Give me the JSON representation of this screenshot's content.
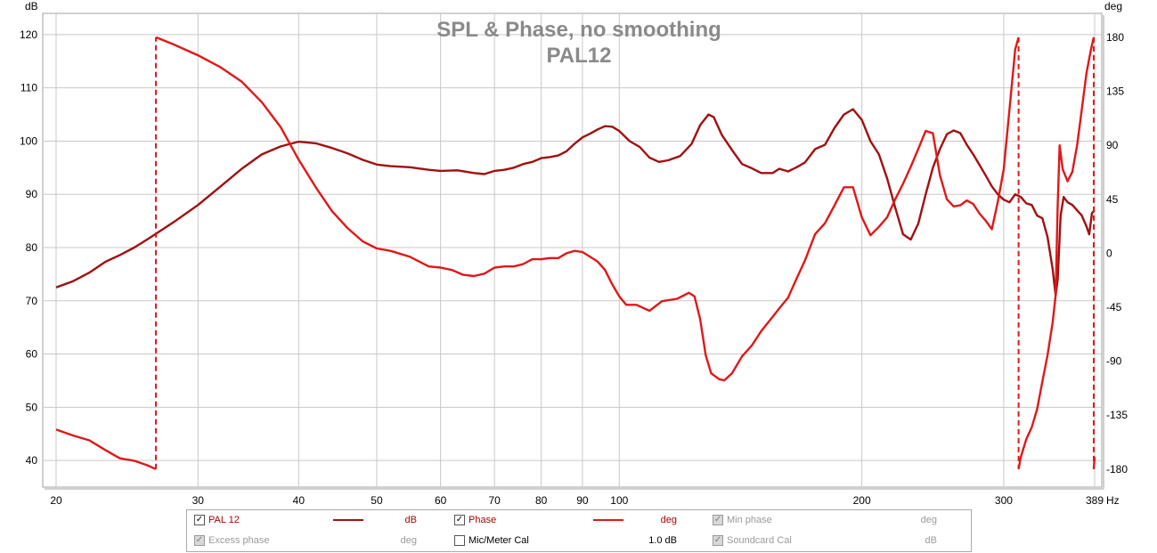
{
  "chart_data": {
    "type": "line",
    "title": "SPL & Phase, no smoothing",
    "subtitle": "PAL12",
    "x_scale": "log",
    "xlim": [
      20,
      389
    ],
    "x_ticks": [
      20,
      30,
      40,
      50,
      60,
      70,
      80,
      90,
      100,
      200,
      300,
      389
    ],
    "x_tick_labels": [
      "20",
      "30",
      "40",
      "50",
      "60",
      "70",
      "80",
      "90",
      "100",
      "200",
      "300",
      "389"
    ],
    "x_unit": "Hz",
    "ylabel_left": "dB",
    "ylabel_right": "deg",
    "ylim_left": [
      35,
      124
    ],
    "ylim_right": [
      -195,
      200
    ],
    "y_ticks_left": [
      40,
      50,
      60,
      70,
      80,
      90,
      100,
      110,
      120
    ],
    "y_ticks_right": [
      -180,
      -135,
      -90,
      -45,
      0,
      45,
      90,
      135,
      180
    ],
    "grid": true,
    "series": [
      {
        "name": "PAL 12",
        "axis": "left",
        "unit": "dB",
        "color": "#a01010",
        "points": [
          [
            20,
            72.5
          ],
          [
            21,
            73.7
          ],
          [
            22,
            75.3
          ],
          [
            23,
            77.3
          ],
          [
            24,
            78.6
          ],
          [
            25,
            80.0
          ],
          [
            26,
            81.6
          ],
          [
            28,
            84.8
          ],
          [
            30,
            88.0
          ],
          [
            32,
            91.5
          ],
          [
            34,
            94.8
          ],
          [
            36,
            97.5
          ],
          [
            38,
            99.0
          ],
          [
            40,
            99.9
          ],
          [
            42,
            99.6
          ],
          [
            44,
            98.7
          ],
          [
            46,
            97.7
          ],
          [
            48,
            96.5
          ],
          [
            50,
            95.6
          ],
          [
            52,
            95.3
          ],
          [
            55,
            95.1
          ],
          [
            58,
            94.6
          ],
          [
            60,
            94.4
          ],
          [
            63,
            94.5
          ],
          [
            66,
            94.0
          ],
          [
            68,
            93.8
          ],
          [
            70,
            94.4
          ],
          [
            72,
            94.6
          ],
          [
            74,
            95.0
          ],
          [
            76,
            95.7
          ],
          [
            78,
            96.1
          ],
          [
            80,
            96.8
          ],
          [
            82,
            97.0
          ],
          [
            84,
            97.3
          ],
          [
            86,
            98.1
          ],
          [
            88,
            99.5
          ],
          [
            90,
            100.7
          ],
          [
            92,
            101.4
          ],
          [
            94,
            102.2
          ],
          [
            96,
            102.8
          ],
          [
            98,
            102.7
          ],
          [
            100,
            101.9
          ],
          [
            103,
            100.0
          ],
          [
            106,
            98.9
          ],
          [
            109,
            96.9
          ],
          [
            112,
            96.1
          ],
          [
            115,
            96.4
          ],
          [
            119,
            97.2
          ],
          [
            123,
            99.5
          ],
          [
            126,
            103.0
          ],
          [
            129,
            105.0
          ],
          [
            131,
            104.5
          ],
          [
            134,
            101.2
          ],
          [
            138,
            98.3
          ],
          [
            142,
            95.7
          ],
          [
            146,
            94.9
          ],
          [
            150,
            94.0
          ],
          [
            155,
            94.0
          ],
          [
            158,
            94.8
          ],
          [
            162,
            94.3
          ],
          [
            166,
            95.1
          ],
          [
            170,
            96.0
          ],
          [
            175,
            98.5
          ],
          [
            180,
            99.3
          ],
          [
            185,
            102.5
          ],
          [
            190,
            105.0
          ],
          [
            195,
            106.0
          ],
          [
            200,
            104.0
          ],
          [
            205,
            100.0
          ],
          [
            210,
            97.5
          ],
          [
            215,
            93.0
          ],
          [
            220,
            87.5
          ],
          [
            225,
            82.5
          ],
          [
            230,
            81.5
          ],
          [
            235,
            84.5
          ],
          [
            240,
            90.0
          ],
          [
            245,
            95.0
          ],
          [
            250,
            98.5
          ],
          [
            255,
            101.3
          ],
          [
            260,
            102.0
          ],
          [
            265,
            101.5
          ],
          [
            270,
            99.3
          ],
          [
            275,
            97.5
          ],
          [
            280,
            95.5
          ],
          [
            285,
            93.5
          ],
          [
            290,
            91.5
          ],
          [
            295,
            90.0
          ],
          [
            300,
            89.0
          ],
          [
            305,
            88.5
          ],
          [
            310,
            90.0
          ],
          [
            315,
            89.5
          ],
          [
            320,
            88.3
          ],
          [
            325,
            88.0
          ],
          [
            330,
            86.0
          ],
          [
            335,
            85.5
          ],
          [
            340,
            82.0
          ],
          [
            345,
            76.0
          ],
          [
            348,
            71.0
          ],
          [
            350,
            74.0
          ],
          [
            353,
            86.0
          ],
          [
            356,
            89.5
          ],
          [
            360,
            88.5
          ],
          [
            365,
            88.0
          ],
          [
            370,
            87.0
          ],
          [
            375,
            86.0
          ],
          [
            380,
            84.0
          ],
          [
            383,
            82.5
          ],
          [
            386,
            86.5
          ],
          [
            389,
            87.0
          ]
        ]
      },
      {
        "name": "Phase",
        "axis": "right",
        "unit": "deg",
        "color": "#e01818",
        "points": [
          [
            20,
            -147
          ],
          [
            21,
            -152
          ],
          [
            22,
            -156
          ],
          [
            23,
            -164
          ],
          [
            24,
            -171
          ],
          [
            25,
            -173
          ],
          [
            26,
            -177
          ],
          [
            26.6,
            -180
          ],
          [
            26.61,
            180
          ],
          [
            28,
            174
          ],
          [
            30,
            165
          ],
          [
            32,
            155
          ],
          [
            34,
            143
          ],
          [
            36,
            126
          ],
          [
            38,
            105
          ],
          [
            40,
            78
          ],
          [
            42,
            55
          ],
          [
            44,
            35
          ],
          [
            46,
            21
          ],
          [
            48,
            10
          ],
          [
            50,
            4
          ],
          [
            52,
            2
          ],
          [
            55,
            -3
          ],
          [
            58,
            -11
          ],
          [
            60,
            -12
          ],
          [
            62,
            -14
          ],
          [
            64,
            -18
          ],
          [
            66,
            -19
          ],
          [
            68,
            -17
          ],
          [
            70,
            -12
          ],
          [
            72,
            -11
          ],
          [
            74,
            -11
          ],
          [
            76,
            -9
          ],
          [
            78,
            -5
          ],
          [
            80,
            -5
          ],
          [
            82,
            -4
          ],
          [
            84,
            -4
          ],
          [
            86,
            0
          ],
          [
            88,
            2
          ],
          [
            90,
            1
          ],
          [
            92,
            -3
          ],
          [
            94,
            -7
          ],
          [
            96,
            -14
          ],
          [
            98,
            -26
          ],
          [
            100,
            -36
          ],
          [
            102,
            -43
          ],
          [
            105,
            -43
          ],
          [
            109,
            -48
          ],
          [
            113,
            -40
          ],
          [
            118,
            -38
          ],
          [
            122,
            -33
          ],
          [
            124,
            -36
          ],
          [
            126,
            -55
          ],
          [
            128,
            -85
          ],
          [
            130,
            -100
          ],
          [
            133,
            -105
          ],
          [
            135,
            -106
          ],
          [
            138,
            -100
          ],
          [
            142,
            -86
          ],
          [
            146,
            -77
          ],
          [
            150,
            -65
          ],
          [
            155,
            -53
          ],
          [
            158,
            -46
          ],
          [
            162,
            -37
          ],
          [
            166,
            -21
          ],
          [
            170,
            -6
          ],
          [
            175,
            16
          ],
          [
            180,
            25
          ],
          [
            185,
            40
          ],
          [
            190,
            55
          ],
          [
            195,
            55
          ],
          [
            200,
            30
          ],
          [
            205,
            15
          ],
          [
            210,
            22
          ],
          [
            215,
            30
          ],
          [
            220,
            45
          ],
          [
            225,
            58
          ],
          [
            230,
            72
          ],
          [
            235,
            87
          ],
          [
            240,
            102
          ],
          [
            245,
            100
          ],
          [
            250,
            65
          ],
          [
            255,
            45
          ],
          [
            260,
            39
          ],
          [
            265,
            40
          ],
          [
            270,
            44
          ],
          [
            275,
            41
          ],
          [
            280,
            33
          ],
          [
            285,
            27
          ],
          [
            290,
            20
          ],
          [
            295,
            43
          ],
          [
            300,
            70
          ],
          [
            305,
            120
          ],
          [
            310,
            170
          ],
          [
            313,
            180
          ],
          [
            313.01,
            -180
          ],
          [
            315,
            -170
          ],
          [
            320,
            -155
          ],
          [
            325,
            -145
          ],
          [
            330,
            -130
          ],
          [
            335,
            -107
          ],
          [
            340,
            -85
          ],
          [
            345,
            -58
          ],
          [
            348,
            -35
          ],
          [
            350,
            40
          ],
          [
            352,
            90
          ],
          [
            355,
            70
          ],
          [
            360,
            60
          ],
          [
            365,
            68
          ],
          [
            370,
            90
          ],
          [
            375,
            120
          ],
          [
            380,
            150
          ],
          [
            385,
            170
          ],
          [
            388,
            180
          ],
          [
            388.01,
            -180
          ],
          [
            389,
            -170
          ]
        ]
      }
    ]
  },
  "legend": {
    "items": [
      {
        "id": "pal12",
        "checked": true,
        "enabled": true,
        "label": "PAL 12",
        "unit": "dB",
        "swatch": "#a01010"
      },
      {
        "id": "phase",
        "checked": true,
        "enabled": true,
        "label": "Phase",
        "unit": "deg",
        "swatch": "#e01818"
      },
      {
        "id": "minphase",
        "checked": true,
        "enabled": false,
        "label": "Min phase",
        "unit": "deg"
      },
      {
        "id": "excess",
        "checked": true,
        "enabled": false,
        "label": "Excess phase",
        "unit": "deg"
      },
      {
        "id": "micmeter",
        "checked": false,
        "enabled": true,
        "label": "Mic/Meter Cal",
        "unit": "1.0 dB"
      },
      {
        "id": "soundcard",
        "checked": true,
        "enabled": false,
        "label": "Soundcard Cal",
        "unit": "dB"
      }
    ]
  },
  "colors": {
    "active_text": "#b00000",
    "normal_text": "#000000",
    "disabled_text": "#9a9a9a",
    "grid": "#c8c8c8",
    "title_text": "#8a8a8a"
  }
}
